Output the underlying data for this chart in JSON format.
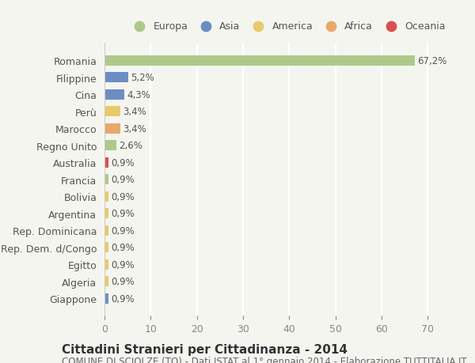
{
  "countries": [
    "Romania",
    "Filippine",
    "Cina",
    "Perù",
    "Marocco",
    "Regno Unito",
    "Australia",
    "Francia",
    "Bolivia",
    "Argentina",
    "Rep. Dominicana",
    "Rep. Dem. d/Congo",
    "Egitto",
    "Algeria",
    "Giappone"
  ],
  "values": [
    67.2,
    5.2,
    4.3,
    3.4,
    3.4,
    2.6,
    0.9,
    0.9,
    0.9,
    0.9,
    0.9,
    0.9,
    0.9,
    0.9,
    0.9
  ],
  "labels": [
    "67,2%",
    "5,2%",
    "4,3%",
    "3,4%",
    "3,4%",
    "2,6%",
    "0,9%",
    "0,9%",
    "0,9%",
    "0,9%",
    "0,9%",
    "0,9%",
    "0,9%",
    "0,9%",
    "0,9%"
  ],
  "colors": [
    "#aec98a",
    "#6b8dc4",
    "#6b8dc4",
    "#e8c96b",
    "#e8a96b",
    "#aec98a",
    "#d94f4f",
    "#aec98a",
    "#e8c96b",
    "#e8c96b",
    "#e8c96b",
    "#e8c96b",
    "#e8c96b",
    "#e8c96b",
    "#6b8dc4"
  ],
  "legend_labels": [
    "Europa",
    "Asia",
    "America",
    "Africa",
    "Oceania"
  ],
  "legend_colors": [
    "#aec98a",
    "#6b8dc4",
    "#e8c96b",
    "#e8a96b",
    "#d94f4f"
  ],
  "title": "Cittadini Stranieri per Cittadinanza - 2014",
  "subtitle": "COMUNE DI SCIOLZE (TO) - Dati ISTAT al 1° gennaio 2014 - Elaborazione TUTTITALIA.IT",
  "xlim": [
    0,
    72
  ],
  "xticks": [
    0,
    10,
    20,
    30,
    40,
    50,
    60,
    70
  ],
  "background_color": "#f5f5f0",
  "grid_color": "#ffffff",
  "bar_height": 0.6,
  "title_fontsize": 11,
  "subtitle_fontsize": 8.5,
  "tick_fontsize": 9,
  "label_fontsize": 8.5
}
